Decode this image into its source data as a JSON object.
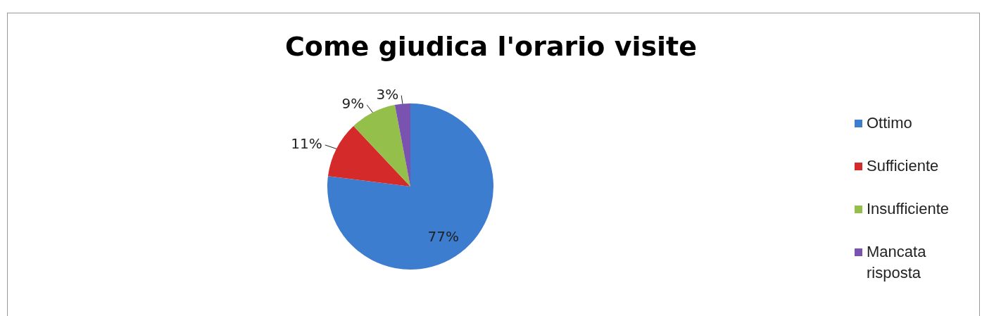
{
  "chart_data": {
    "type": "pie",
    "title": "Come giudica l'orario visite",
    "categories": [
      "Ottimo",
      "Sufficiente",
      "Insufficiente",
      "Mancata risposta"
    ],
    "values": [
      77,
      11,
      9,
      3
    ],
    "colors": [
      "#3d7dcf",
      "#d42a2a",
      "#94bf4a",
      "#7a52b0"
    ],
    "value_labels": [
      "77%",
      "11%",
      "9%",
      "3%"
    ],
    "legend": "right"
  }
}
